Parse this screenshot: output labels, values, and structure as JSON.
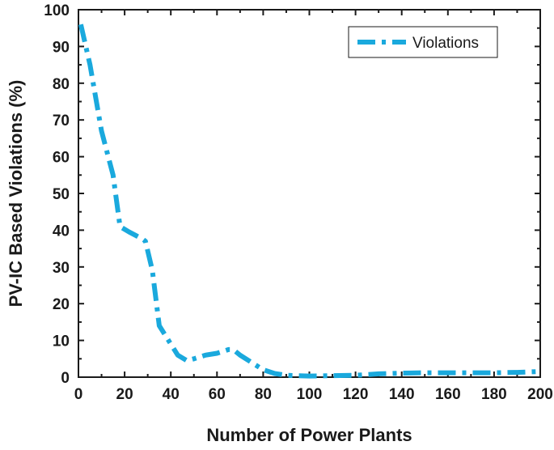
{
  "chart_data": {
    "type": "line",
    "title": "",
    "xlabel": "Number of Power Plants",
    "ylabel": "PV-IC Based Violations (%)",
    "xlim": [
      0,
      200
    ],
    "ylim": [
      0,
      100
    ],
    "x_ticks": [
      0,
      20,
      40,
      60,
      80,
      100,
      120,
      140,
      160,
      180,
      200
    ],
    "y_ticks": [
      0,
      10,
      20,
      30,
      40,
      50,
      60,
      70,
      80,
      90,
      100
    ],
    "grid": false,
    "legend_position": "top-right",
    "series": [
      {
        "name": "Violations",
        "color": "#1AA9DD",
        "line_style": "dash-dot",
        "x": [
          1,
          5,
          10,
          15,
          18,
          22,
          25,
          28,
          29,
          32,
          35,
          40,
          43,
          47,
          50,
          55,
          60,
          65,
          67,
          70,
          75,
          80,
          85,
          90,
          100,
          110,
          120,
          130,
          140,
          150,
          160,
          170,
          180,
          190,
          198
        ],
        "y": [
          96,
          85,
          67,
          55,
          41,
          39.5,
          38.5,
          37.5,
          37,
          29,
          14,
          9,
          6,
          4.5,
          5,
          6,
          6.5,
          7.5,
          7.5,
          6,
          4,
          2,
          1,
          0.5,
          0.3,
          0.4,
          0.5,
          0.9,
          1.1,
          1.2,
          1.2,
          1.2,
          1.2,
          1.3,
          1.5
        ]
      }
    ]
  }
}
